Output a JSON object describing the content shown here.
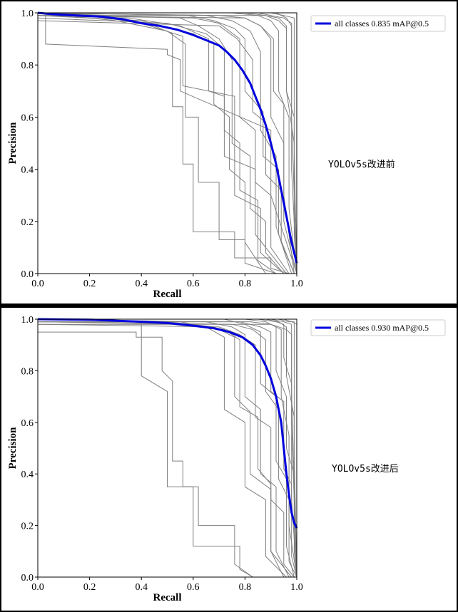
{
  "charts": [
    {
      "caption": "YOLOv5s改进前",
      "legend_label": "all classes 0.835 mAP@0.5"
    },
    {
      "caption": "YOLOv5s改进后",
      "legend_label": "all classes 0.930 mAP@0.5"
    }
  ],
  "chart_data": [
    {
      "type": "line",
      "title": "",
      "xlabel": "Recall",
      "ylabel": "Precision",
      "xlim": [
        0,
        1.0
      ],
      "ylim": [
        0,
        1.0
      ],
      "xticks": [
        "0.0",
        "0.2",
        "0.4",
        "0.6",
        "0.8",
        "1.0"
      ],
      "yticks": [
        "0.0",
        "0.2",
        "0.4",
        "0.6",
        "0.8",
        "1.0"
      ],
      "legend_position": "top-right",
      "colors": {
        "all_classes": "#0000dd",
        "class_curves": "#808080"
      },
      "series": [
        {
          "name": "all classes 0.835 mAP@0.5",
          "x": [
            0.0,
            0.05,
            0.15,
            0.25,
            0.33,
            0.4,
            0.47,
            0.54,
            0.6,
            0.65,
            0.7,
            0.73,
            0.76,
            0.79,
            0.82,
            0.84,
            0.86,
            0.88,
            0.9,
            0.92,
            0.94,
            0.96,
            0.98,
            1.0
          ],
          "y": [
            1.0,
            0.995,
            0.99,
            0.985,
            0.975,
            0.96,
            0.95,
            0.935,
            0.915,
            0.895,
            0.875,
            0.85,
            0.82,
            0.78,
            0.73,
            0.68,
            0.63,
            0.57,
            0.5,
            0.42,
            0.32,
            0.22,
            0.12,
            0.04
          ]
        }
      ],
      "class_curves": [
        {
          "x": [
            0,
            0.03,
            0.03,
            0.5,
            0.5,
            0.55,
            0.55,
            0.9,
            0.9,
            1.0
          ],
          "y": [
            1.0,
            1.0,
            0.88,
            0.86,
            0.84,
            0.82,
            0.7,
            0.55,
            0.3,
            0.0
          ]
        },
        {
          "x": [
            0,
            0.3,
            0.45,
            0.52,
            0.52,
            0.56,
            0.56,
            0.6,
            0.6,
            0.76,
            0.76,
            0.9,
            0.9,
            0.97
          ],
          "y": [
            1.0,
            0.98,
            0.95,
            0.92,
            0.64,
            0.64,
            0.42,
            0.42,
            0.16,
            0.16,
            0.06,
            0.06,
            0.02,
            0.0
          ]
        },
        {
          "x": [
            0,
            0.3,
            0.5,
            0.57,
            0.57,
            0.62,
            0.62,
            0.7,
            0.7,
            0.8,
            0.8,
            0.92
          ],
          "y": [
            1.0,
            0.97,
            0.93,
            0.88,
            0.6,
            0.6,
            0.35,
            0.35,
            0.13,
            0.13,
            0.04,
            0.0
          ]
        },
        {
          "x": [
            0,
            0.55,
            0.62,
            0.7,
            0.75,
            0.75,
            0.82,
            0.82,
            0.88,
            0.88,
            0.95
          ],
          "y": [
            1.0,
            0.98,
            0.95,
            0.9,
            0.82,
            0.5,
            0.45,
            0.25,
            0.2,
            0.08,
            0.0
          ]
        },
        {
          "x": [
            0,
            0.6,
            0.7,
            0.78,
            0.78,
            0.84,
            0.84,
            0.9,
            0.9,
            0.97
          ],
          "y": [
            0.99,
            0.98,
            0.96,
            0.9,
            0.6,
            0.55,
            0.35,
            0.3,
            0.1,
            0.0
          ]
        },
        {
          "x": [
            0,
            0.65,
            0.75,
            0.82,
            0.86,
            0.86,
            0.92,
            0.92,
            0.98
          ],
          "y": [
            1.0,
            0.99,
            0.97,
            0.93,
            0.85,
            0.55,
            0.45,
            0.18,
            0.0
          ]
        },
        {
          "x": [
            0,
            0.7,
            0.8,
            0.86,
            0.9,
            0.9,
            0.95,
            0.95,
            1.0
          ],
          "y": [
            1.0,
            0.99,
            0.98,
            0.95,
            0.9,
            0.6,
            0.5,
            0.2,
            0.0
          ]
        },
        {
          "x": [
            0,
            0.75,
            0.85,
            0.9,
            0.93,
            0.93,
            0.97,
            0.97,
            1.0
          ],
          "y": [
            1.0,
            1.0,
            0.99,
            0.97,
            0.93,
            0.7,
            0.6,
            0.25,
            0.0
          ]
        },
        {
          "x": [
            0,
            0.8,
            0.88,
            0.93,
            0.96,
            0.96,
            0.99,
            0.99,
            1.0
          ],
          "y": [
            1.0,
            1.0,
            0.99,
            0.98,
            0.95,
            0.7,
            0.5,
            0.15,
            0.0
          ]
        },
        {
          "x": [
            0,
            0.85,
            0.9,
            0.95,
            0.98,
            0.98,
            1.0
          ],
          "y": [
            1.0,
            1.0,
            0.99,
            0.98,
            0.96,
            0.4,
            0.0
          ]
        },
        {
          "x": [
            0,
            0.9,
            0.95,
            0.99,
            0.99,
            1.0
          ],
          "y": [
            1.0,
            1.0,
            0.99,
            0.98,
            0.5,
            0.0
          ]
        },
        {
          "x": [
            0,
            0.5,
            0.65,
            0.72,
            0.72,
            0.78,
            0.78,
            0.85,
            0.85,
            0.92
          ],
          "y": [
            0.98,
            0.96,
            0.92,
            0.86,
            0.55,
            0.5,
            0.32,
            0.28,
            0.05,
            0.0
          ]
        },
        {
          "x": [
            0,
            0.4,
            0.6,
            0.68,
            0.68,
            0.74,
            0.74,
            0.8,
            0.8,
            0.88
          ],
          "y": [
            0.99,
            0.97,
            0.92,
            0.88,
            0.65,
            0.6,
            0.4,
            0.35,
            0.12,
            0.0
          ]
        },
        {
          "x": [
            0,
            0.7,
            0.77,
            0.83,
            0.83,
            0.88,
            0.88,
            0.94,
            0.94,
            0.99
          ],
          "y": [
            0.97,
            0.95,
            0.9,
            0.82,
            0.62,
            0.58,
            0.38,
            0.32,
            0.12,
            0.0
          ]
        },
        {
          "x": [
            0,
            0.58,
            0.68,
            0.76,
            0.8,
            0.8,
            0.87,
            0.87,
            0.93,
            0.93,
            0.99
          ],
          "y": [
            1.0,
            0.99,
            0.97,
            0.94,
            0.9,
            0.7,
            0.62,
            0.45,
            0.4,
            0.15,
            0.0
          ]
        },
        {
          "x": [
            0,
            0.8,
            0.86,
            0.91,
            0.91,
            0.95,
            0.95,
            0.99
          ],
          "y": [
            0.99,
            0.98,
            0.95,
            0.9,
            0.7,
            0.65,
            0.3,
            0.0
          ]
        },
        {
          "x": [
            0,
            0.88,
            0.93,
            0.96,
            0.96,
            0.99,
            0.99,
            1.0
          ],
          "y": [
            0.99,
            0.99,
            0.97,
            0.94,
            0.7,
            0.6,
            0.2,
            0.0
          ]
        },
        {
          "x": [
            0,
            0.92,
            0.96,
            0.98,
            0.98,
            1.0
          ],
          "y": [
            1.0,
            1.0,
            0.98,
            0.95,
            0.6,
            0.0
          ]
        },
        {
          "x": [
            0,
            0.35,
            0.55,
            0.66,
            0.66,
            0.72,
            0.72,
            0.84,
            0.84,
            0.96
          ],
          "y": [
            0.99,
            0.98,
            0.95,
            0.9,
            0.7,
            0.68,
            0.45,
            0.4,
            0.15,
            0.0
          ]
        },
        {
          "x": [
            0,
            0.2,
            0.4,
            0.56,
            0.56,
            0.76,
            0.76,
            0.86,
            0.86,
            0.95
          ],
          "y": [
            0.99,
            0.99,
            0.96,
            0.91,
            0.72,
            0.68,
            0.3,
            0.25,
            0.08,
            0.0
          ]
        }
      ]
    },
    {
      "type": "line",
      "title": "",
      "xlabel": "Recall",
      "ylabel": "Precision",
      "xlim": [
        0,
        1.0
      ],
      "ylim": [
        0,
        1.0
      ],
      "xticks": [
        "0.0",
        "0.2",
        "0.4",
        "0.6",
        "0.8",
        "1.0"
      ],
      "yticks": [
        "0.0",
        "0.2",
        "0.4",
        "0.6",
        "0.8",
        "1.0"
      ],
      "legend_position": "top-right",
      "colors": {
        "all_classes": "#0000dd",
        "class_curves": "#808080"
      },
      "series": [
        {
          "name": "all classes 0.930 mAP@0.5",
          "x": [
            0.0,
            0.2,
            0.4,
            0.5,
            0.6,
            0.68,
            0.74,
            0.79,
            0.83,
            0.86,
            0.88,
            0.9,
            0.92,
            0.94,
            0.95,
            0.96,
            0.97,
            0.98,
            0.99,
            1.0
          ],
          "y": [
            1.0,
            0.998,
            0.99,
            0.985,
            0.975,
            0.965,
            0.95,
            0.93,
            0.9,
            0.86,
            0.82,
            0.77,
            0.7,
            0.6,
            0.5,
            0.4,
            0.32,
            0.25,
            0.21,
            0.19
          ]
        }
      ],
      "class_curves": [
        {
          "x": [
            0,
            0.38,
            0.38,
            0.48,
            0.48,
            0.52,
            0.52,
            0.56,
            0.56,
            0.6,
            0.6,
            0.78,
            0.78,
            0.83
          ],
          "y": [
            0.95,
            0.95,
            0.93,
            0.93,
            0.8,
            0.76,
            0.45,
            0.45,
            0.35,
            0.35,
            0.12,
            0.12,
            0.03,
            0.0
          ]
        },
        {
          "x": [
            0,
            0.4,
            0.4,
            0.5,
            0.5,
            0.62,
            0.62,
            0.76,
            0.76,
            0.83
          ],
          "y": [
            1.0,
            0.99,
            0.78,
            0.72,
            0.35,
            0.35,
            0.2,
            0.2,
            0.05,
            0.0
          ]
        },
        {
          "x": [
            0,
            0.55,
            0.65,
            0.72,
            0.72,
            0.8,
            0.8,
            0.88,
            0.88,
            0.96
          ],
          "y": [
            1.0,
            0.99,
            0.97,
            0.93,
            0.65,
            0.6,
            0.35,
            0.3,
            0.08,
            0.0
          ]
        },
        {
          "x": [
            0,
            0.65,
            0.75,
            0.8,
            0.8,
            0.86,
            0.86,
            0.92,
            0.92,
            0.97
          ],
          "y": [
            1.0,
            0.99,
            0.97,
            0.94,
            0.7,
            0.65,
            0.4,
            0.35,
            0.1,
            0.0
          ]
        },
        {
          "x": [
            0,
            0.72,
            0.8,
            0.86,
            0.86,
            0.92,
            0.92,
            0.96,
            0.96,
            0.99
          ],
          "y": [
            1.0,
            1.0,
            0.98,
            0.95,
            0.75,
            0.7,
            0.45,
            0.38,
            0.12,
            0.0
          ]
        },
        {
          "x": [
            0,
            0.8,
            0.88,
            0.92,
            0.92,
            0.96,
            0.96,
            0.99,
            0.99,
            1.0
          ],
          "y": [
            1.0,
            1.0,
            0.99,
            0.97,
            0.8,
            0.7,
            0.5,
            0.4,
            0.1,
            0.0
          ]
        },
        {
          "x": [
            0,
            0.85,
            0.92,
            0.95,
            0.95,
            0.98,
            0.98,
            1.0
          ],
          "y": [
            1.0,
            1.0,
            0.99,
            0.98,
            0.85,
            0.75,
            0.3,
            0.0
          ]
        },
        {
          "x": [
            0,
            0.9,
            0.95,
            0.98,
            0.98,
            1.0
          ],
          "y": [
            1.0,
            1.0,
            0.99,
            0.98,
            0.6,
            0.0
          ]
        },
        {
          "x": [
            0,
            0.93,
            0.97,
            0.99,
            0.99,
            1.0
          ],
          "y": [
            1.0,
            1.0,
            0.99,
            0.99,
            0.5,
            0.0
          ]
        },
        {
          "x": [
            0,
            0.95,
            0.98,
            1.0,
            1.0
          ],
          "y": [
            1.0,
            1.0,
            0.99,
            0.98,
            0.0
          ]
        },
        {
          "x": [
            0,
            0.75,
            0.83,
            0.88,
            0.88,
            0.93,
            0.93,
            0.97,
            0.97,
            1.0
          ],
          "y": [
            0.99,
            0.98,
            0.96,
            0.92,
            0.72,
            0.65,
            0.38,
            0.3,
            0.06,
            0.0
          ]
        },
        {
          "x": [
            0,
            0.7,
            0.78,
            0.84,
            0.84,
            0.9,
            0.9,
            0.95,
            0.95,
            0.99
          ],
          "y": [
            0.98,
            0.97,
            0.94,
            0.9,
            0.62,
            0.58,
            0.3,
            0.25,
            0.05,
            0.0
          ]
        },
        {
          "x": [
            0,
            0.82,
            0.9,
            0.94,
            0.94,
            0.97,
            0.97,
            1.0
          ],
          "y": [
            0.99,
            0.99,
            0.98,
            0.96,
            0.7,
            0.55,
            0.2,
            0.0
          ]
        },
        {
          "x": [
            0,
            0.88,
            0.93,
            0.96,
            0.96,
            0.99,
            0.99,
            1.0
          ],
          "y": [
            1.0,
            1.0,
            0.99,
            0.97,
            0.78,
            0.62,
            0.18,
            0.0
          ]
        },
        {
          "x": [
            0,
            0.6,
            0.72,
            0.78,
            0.78,
            0.85,
            0.85,
            0.9,
            0.9,
            0.95
          ],
          "y": [
            0.99,
            0.98,
            0.96,
            0.92,
            0.66,
            0.62,
            0.42,
            0.36,
            0.1,
            0.0
          ]
        },
        {
          "x": [
            0,
            0.9,
            0.96,
            0.98,
            0.98,
            1.0
          ],
          "y": [
            0.98,
            0.98,
            0.96,
            0.94,
            0.72,
            0.0
          ]
        },
        {
          "x": [
            0,
            0.78,
            0.86,
            0.9,
            0.9,
            0.95,
            0.95,
            0.98,
            0.98,
            1.0
          ],
          "y": [
            0.99,
            0.99,
            0.97,
            0.95,
            0.72,
            0.68,
            0.42,
            0.36,
            0.08,
            0.0
          ]
        },
        {
          "x": [
            0,
            0.5,
            0.68,
            0.76,
            0.76,
            0.82,
            0.82,
            0.9,
            0.9,
            0.98
          ],
          "y": [
            0.99,
            0.99,
            0.97,
            0.93,
            0.7,
            0.64,
            0.4,
            0.34,
            0.1,
            0.0
          ]
        }
      ]
    }
  ]
}
